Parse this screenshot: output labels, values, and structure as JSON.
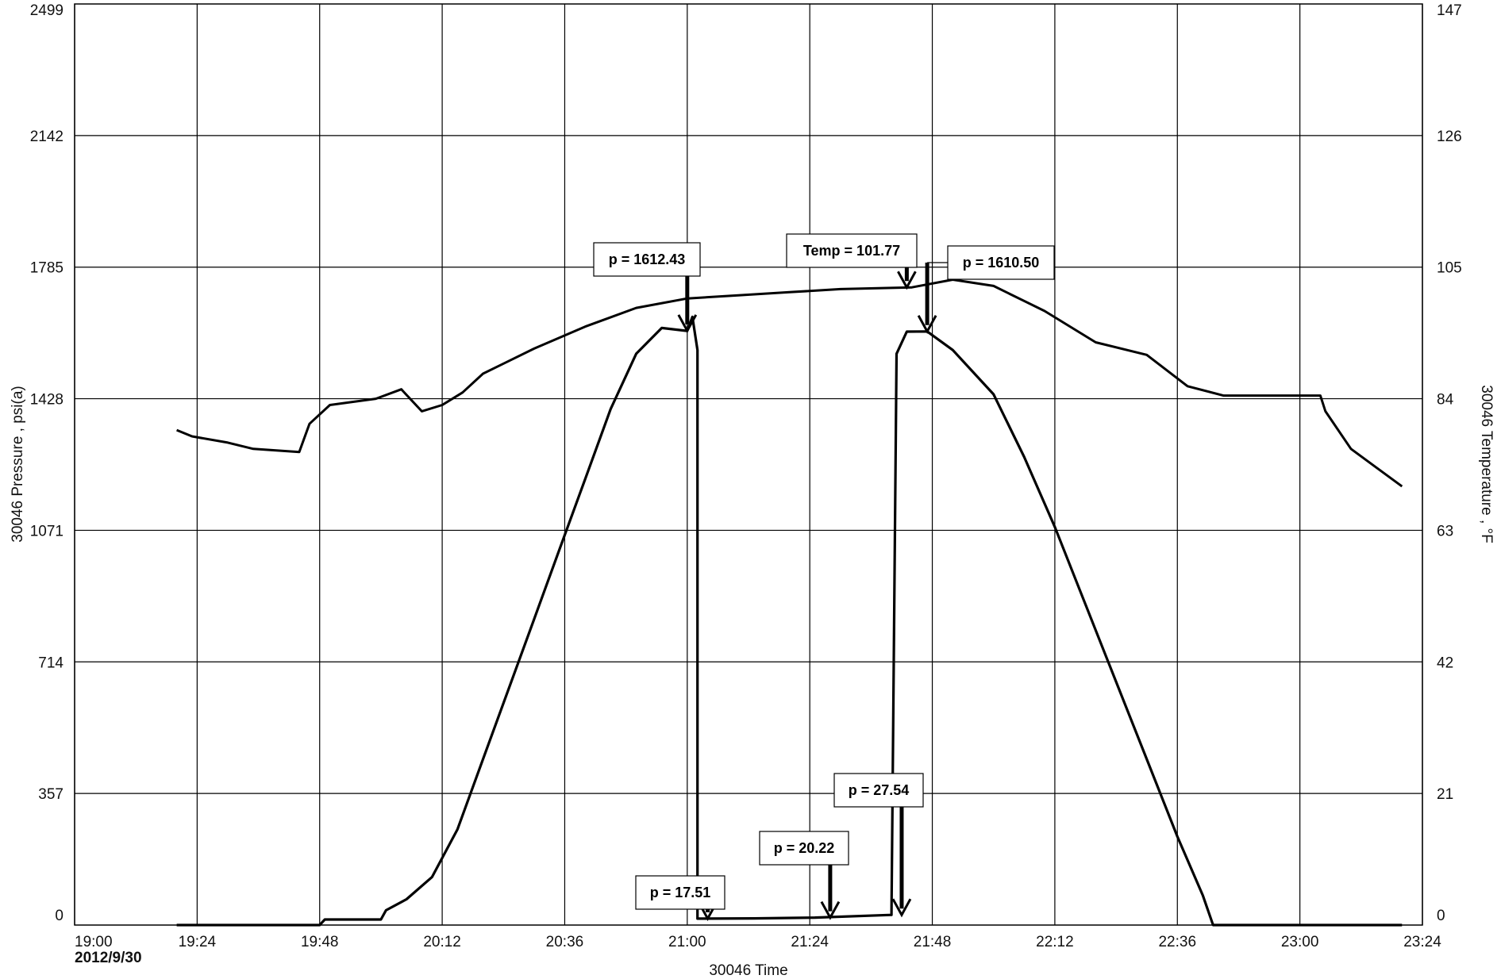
{
  "chart_data": {
    "type": "line",
    "title": "",
    "xlabel": "30046 Time",
    "ylabel_left": "30046 Pressure , psi(a)",
    "ylabel_right": "30046 Temperature , °F",
    "date_label": "2012/9/30",
    "xlim": [
      "19:00",
      "23:24"
    ],
    "x_ticks": [
      "19:00",
      "19:24",
      "19:48",
      "20:12",
      "20:36",
      "21:00",
      "21:24",
      "21:48",
      "22:12",
      "22:36",
      "23:00",
      "23:24"
    ],
    "ylim_left": [
      0,
      2499
    ],
    "y_ticks_left": [
      "0",
      "357",
      "714",
      "1071",
      "1428",
      "1785",
      "2142",
      "2499"
    ],
    "ylim_right": [
      0,
      147
    ],
    "y_ticks_right": [
      "0",
      "21",
      "42",
      "63",
      "84",
      "105",
      "126",
      "147"
    ],
    "grid": true,
    "series": [
      {
        "name": "Pressure",
        "axis": "left",
        "points": [
          [
            "19:20",
            0
          ],
          [
            "19:48",
            0
          ],
          [
            "19:49",
            15
          ],
          [
            "20:00",
            15
          ],
          [
            "20:01",
            40
          ],
          [
            "20:05",
            70
          ],
          [
            "20:10",
            130
          ],
          [
            "20:15",
            260
          ],
          [
            "20:20",
            450
          ],
          [
            "20:25",
            640
          ],
          [
            "20:30",
            830
          ],
          [
            "20:35",
            1020
          ],
          [
            "20:40",
            1210
          ],
          [
            "20:45",
            1400
          ],
          [
            "20:50",
            1550
          ],
          [
            "20:55",
            1620
          ],
          [
            "21:00",
            1612
          ],
          [
            "21:01",
            1650
          ],
          [
            "21:02",
            1560
          ],
          [
            "21:02",
            17.5
          ],
          [
            "21:13",
            18
          ],
          [
            "21:25",
            20.2
          ],
          [
            "21:40",
            27.5
          ],
          [
            "21:41",
            1550
          ],
          [
            "21:43",
            1610
          ],
          [
            "21:47",
            1610.5
          ],
          [
            "21:52",
            1560
          ],
          [
            "22:00",
            1440
          ],
          [
            "22:06",
            1270
          ],
          [
            "22:12",
            1080
          ],
          [
            "22:18",
            870
          ],
          [
            "22:24",
            660
          ],
          [
            "22:30",
            450
          ],
          [
            "22:36",
            240
          ],
          [
            "22:41",
            80
          ],
          [
            "22:43",
            0
          ],
          [
            "23:20",
            0
          ]
        ]
      },
      {
        "name": "Temperature",
        "axis": "right",
        "points": [
          [
            "19:20",
            79
          ],
          [
            "19:23",
            78
          ],
          [
            "19:30",
            77
          ],
          [
            "19:35",
            76
          ],
          [
            "19:44",
            75.5
          ],
          [
            "19:46",
            80
          ],
          [
            "19:50",
            83
          ],
          [
            "19:59",
            84
          ],
          [
            "20:04",
            85.5
          ],
          [
            "20:08",
            82
          ],
          [
            "20:12",
            83
          ],
          [
            "20:16",
            85
          ],
          [
            "20:20",
            88
          ],
          [
            "20:30",
            92
          ],
          [
            "20:40",
            95.5
          ],
          [
            "20:50",
            98.5
          ],
          [
            "21:00",
            100
          ],
          [
            "21:10",
            100.5
          ],
          [
            "21:20",
            101
          ],
          [
            "21:30",
            101.5
          ],
          [
            "21:44",
            101.77
          ],
          [
            "21:52",
            103
          ],
          [
            "22:00",
            102
          ],
          [
            "22:10",
            98
          ],
          [
            "22:20",
            93
          ],
          [
            "22:30",
            91
          ],
          [
            "22:38",
            86
          ],
          [
            "22:45",
            84.5
          ],
          [
            "23:00",
            84.5
          ],
          [
            "23:04",
            84.5
          ],
          [
            "23:05",
            82
          ],
          [
            "23:10",
            76
          ],
          [
            "23:15",
            73
          ],
          [
            "23:20",
            70
          ]
        ]
      }
    ],
    "annotations": [
      {
        "text": "p = 1612.43",
        "x": "21:00",
        "y": 1612.43,
        "axis": "left"
      },
      {
        "text": "Temp = 101.77",
        "x": "21:43",
        "y": 101.77,
        "axis": "right"
      },
      {
        "text": "p = 1610.50",
        "x": "21:47",
        "y": 1610.5,
        "axis": "left"
      },
      {
        "text": "p = 17.51",
        "x": "21:04",
        "y": 17.51,
        "axis": "left"
      },
      {
        "text": "p = 20.22",
        "x": "21:28",
        "y": 20.22,
        "axis": "left"
      },
      {
        "text": "p = 27.54",
        "x": "21:42",
        "y": 27.54,
        "axis": "left"
      }
    ]
  }
}
